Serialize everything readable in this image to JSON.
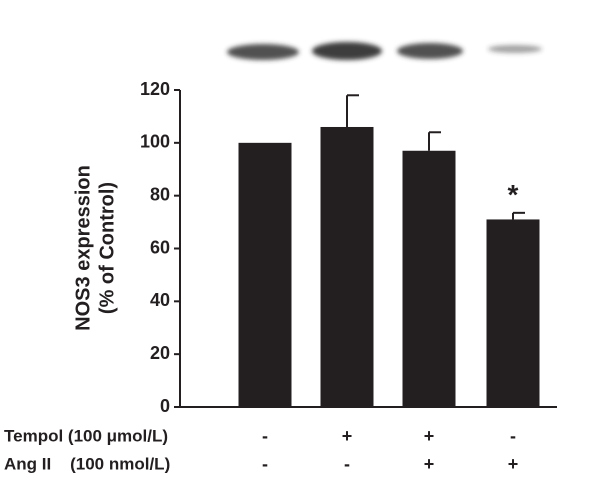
{
  "chart_data": {
    "type": "bar",
    "y_label": [
      "NOS3 expression",
      "(% of Control)"
    ],
    "series": [
      {
        "color": "#231f20",
        "values": [
          100,
          106,
          97,
          71
        ],
        "errors": [
          0,
          12,
          7,
          2.5
        ]
      }
    ],
    "ylim": [
      0,
      120
    ],
    "yticks": [
      0,
      20,
      40,
      60,
      80,
      100,
      120
    ],
    "annotation": "*",
    "treatments": [
      {
        "label": "Tempol (100 μmol/L)",
        "signs": [
          "-",
          "+",
          "+",
          "-"
        ]
      },
      {
        "label": "Ang II    (100 nmol/L)",
        "signs": [
          "-",
          "-",
          "+",
          "+"
        ]
      }
    ]
  }
}
